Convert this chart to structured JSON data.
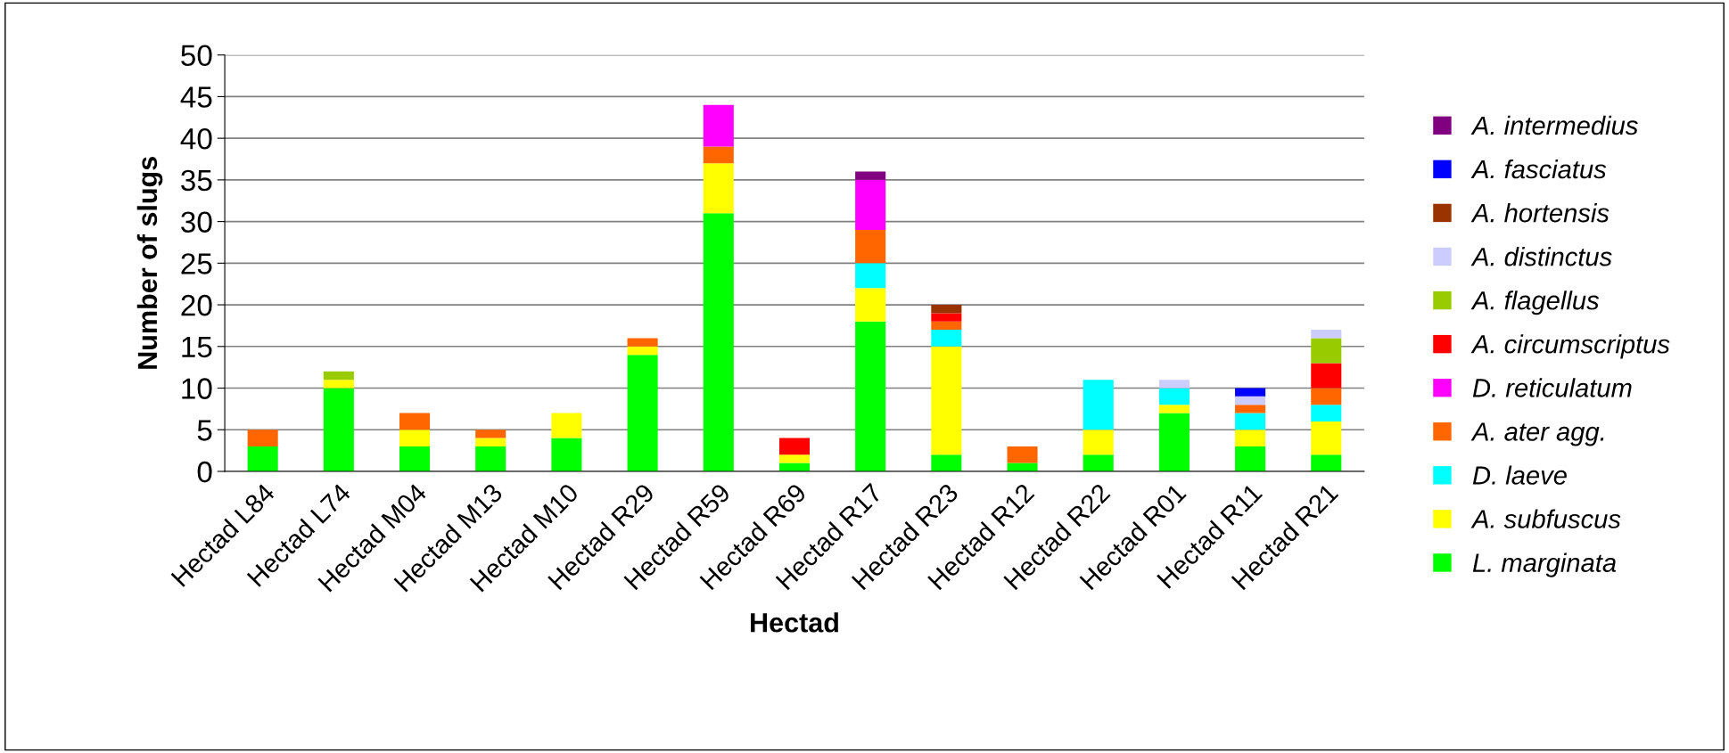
{
  "chart_data": {
    "type": "bar",
    "stacked": true,
    "xlabel": "Hectad",
    "ylabel": "Number of slugs",
    "categories": [
      "Hectad L84",
      "Hectad L74",
      "Hectad M04",
      "Hectad M13",
      "Hectad M10",
      "Hectad R29",
      "Hectad R59",
      "Hectad R69",
      "Hectad R17",
      "Hectad R23",
      "Hectad R12",
      "Hectad R22",
      "Hectad R01",
      "Hectad R11",
      "Hectad R21"
    ],
    "series": [
      {
        "name": "L. marginata",
        "color": "#00ff00",
        "values": [
          3,
          10,
          3,
          3,
          4,
          14,
          31,
          1,
          18,
          2,
          1,
          2,
          7,
          3,
          2
        ]
      },
      {
        "name": "A. subfuscus",
        "color": "#ffff00",
        "values": [
          null,
          1,
          2,
          1,
          3,
          1,
          6,
          1,
          4,
          13,
          null,
          3,
          1,
          2,
          4
        ]
      },
      {
        "name": "D. laeve",
        "color": "#00ffff",
        "values": [
          null,
          null,
          null,
          null,
          null,
          null,
          null,
          null,
          3,
          2,
          null,
          6,
          2,
          2,
          2
        ]
      },
      {
        "name": "A. ater agg.",
        "color": "#ff6600",
        "values": [
          2,
          null,
          2,
          1,
          null,
          1,
          2,
          null,
          4,
          1,
          2,
          null,
          null,
          1,
          2
        ]
      },
      {
        "name": "D. reticulatum",
        "color": "#ff00ff",
        "values": [
          null,
          null,
          null,
          null,
          null,
          null,
          5,
          null,
          6,
          null,
          null,
          null,
          null,
          null,
          null
        ]
      },
      {
        "name": "A. circumscriptus",
        "color": "#ff0000",
        "values": [
          null,
          null,
          null,
          null,
          null,
          null,
          null,
          2,
          null,
          1,
          null,
          null,
          null,
          null,
          3
        ]
      },
      {
        "name": "A. flagellus",
        "color": "#99cc00",
        "values": [
          null,
          1,
          null,
          null,
          null,
          null,
          null,
          null,
          null,
          null,
          null,
          null,
          null,
          null,
          3
        ]
      },
      {
        "name": "A. distinctus",
        "color": "#ccccff",
        "values": [
          null,
          null,
          null,
          null,
          null,
          null,
          null,
          null,
          null,
          null,
          null,
          null,
          1,
          1,
          1
        ]
      },
      {
        "name": "A. hortensis",
        "color": "#993300",
        "values": [
          null,
          null,
          null,
          null,
          null,
          null,
          null,
          null,
          null,
          1,
          null,
          null,
          null,
          null,
          null
        ]
      },
      {
        "name": "A. fasciatus",
        "color": "#0000ff",
        "values": [
          null,
          null,
          null,
          null,
          null,
          null,
          null,
          null,
          null,
          null,
          null,
          null,
          null,
          1,
          null
        ]
      },
      {
        "name": "A. intermedius",
        "color": "#800080",
        "values": [
          null,
          null,
          null,
          null,
          null,
          null,
          null,
          null,
          1,
          null,
          null,
          null,
          null,
          null,
          null
        ]
      }
    ],
    "ylim": [
      0,
      50
    ],
    "yticks": [
      0,
      5,
      10,
      15,
      20,
      25,
      30,
      35,
      40,
      45,
      50
    ],
    "grid": "y",
    "legend": "right"
  }
}
